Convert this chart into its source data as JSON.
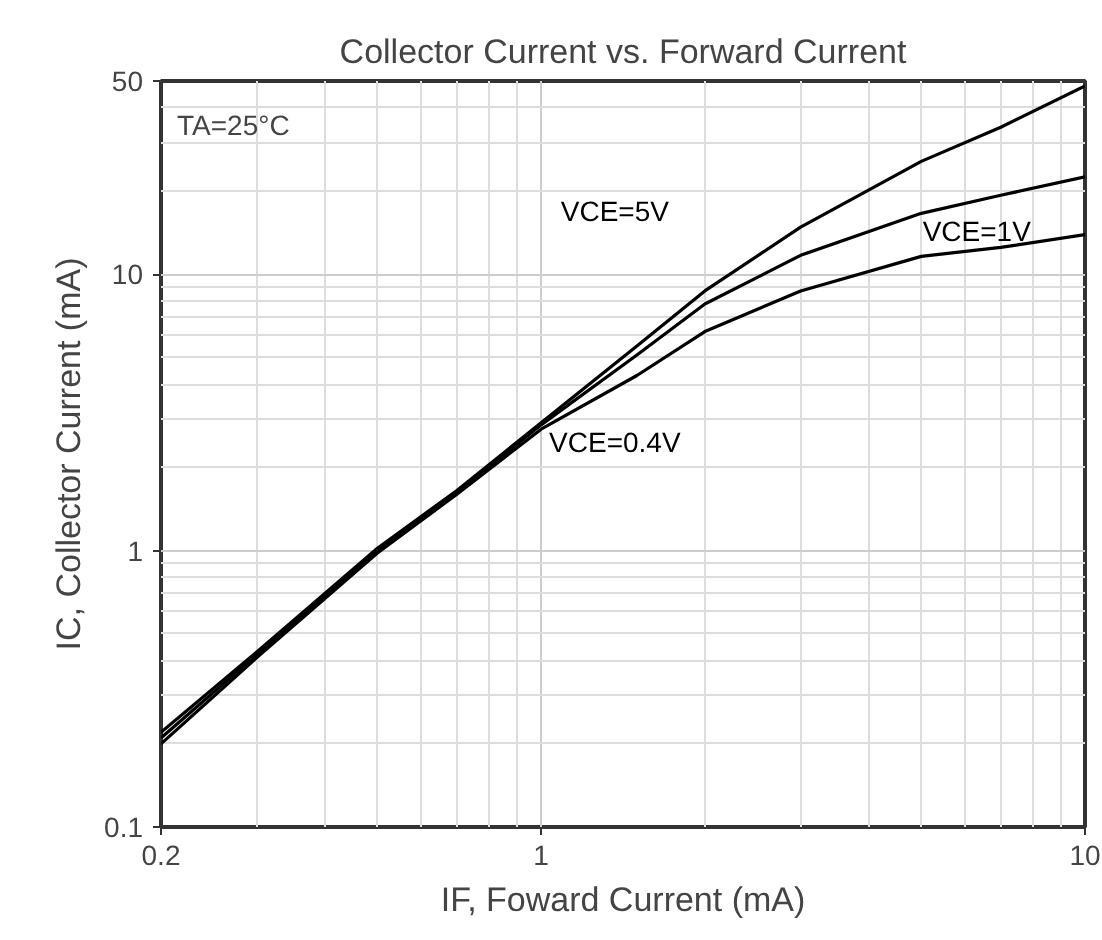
{
  "chart_data": {
    "type": "line",
    "title": "Collector Current vs. Forward Current",
    "xlabel": "IF, Foward Current (mA)",
    "ylabel": "IC, Collector Current (mA)",
    "log": "xy",
    "grid": true,
    "line_style": "solid",
    "x": [
      0.2,
      0.3,
      0.5,
      0.7,
      1,
      1.5,
      2,
      3,
      5,
      7,
      10
    ],
    "series": [
      {
        "name": "VCE=5V",
        "color": "#000000",
        "values": [
          0.22,
          0.43,
          1.02,
          1.65,
          2.9,
          5.5,
          8.7,
          14.8,
          25.6,
          34,
          48
        ]
      },
      {
        "name": "VCE=1V",
        "color": "#000000",
        "values": [
          0.21,
          0.42,
          1.0,
          1.62,
          2.85,
          5.1,
          7.8,
          11.7,
          16.6,
          19.3,
          22.5
        ]
      },
      {
        "name": "VCE=0.4V",
        "color": "#000000",
        "values": [
          0.2,
          0.41,
          0.98,
          1.6,
          2.75,
          4.3,
          6.2,
          8.7,
          11.6,
          12.5,
          13.9
        ]
      }
    ],
    "annotations": [
      "TA=25°C"
    ],
    "xlim": [
      0.2,
      10
    ],
    "ylim": [
      0.1,
      50
    ],
    "xticks": [
      0.2,
      1,
      10
    ],
    "yticks": [
      {
        "value": 0.1,
        "label": "0.1"
      },
      1,
      10,
      50
    ]
  }
}
